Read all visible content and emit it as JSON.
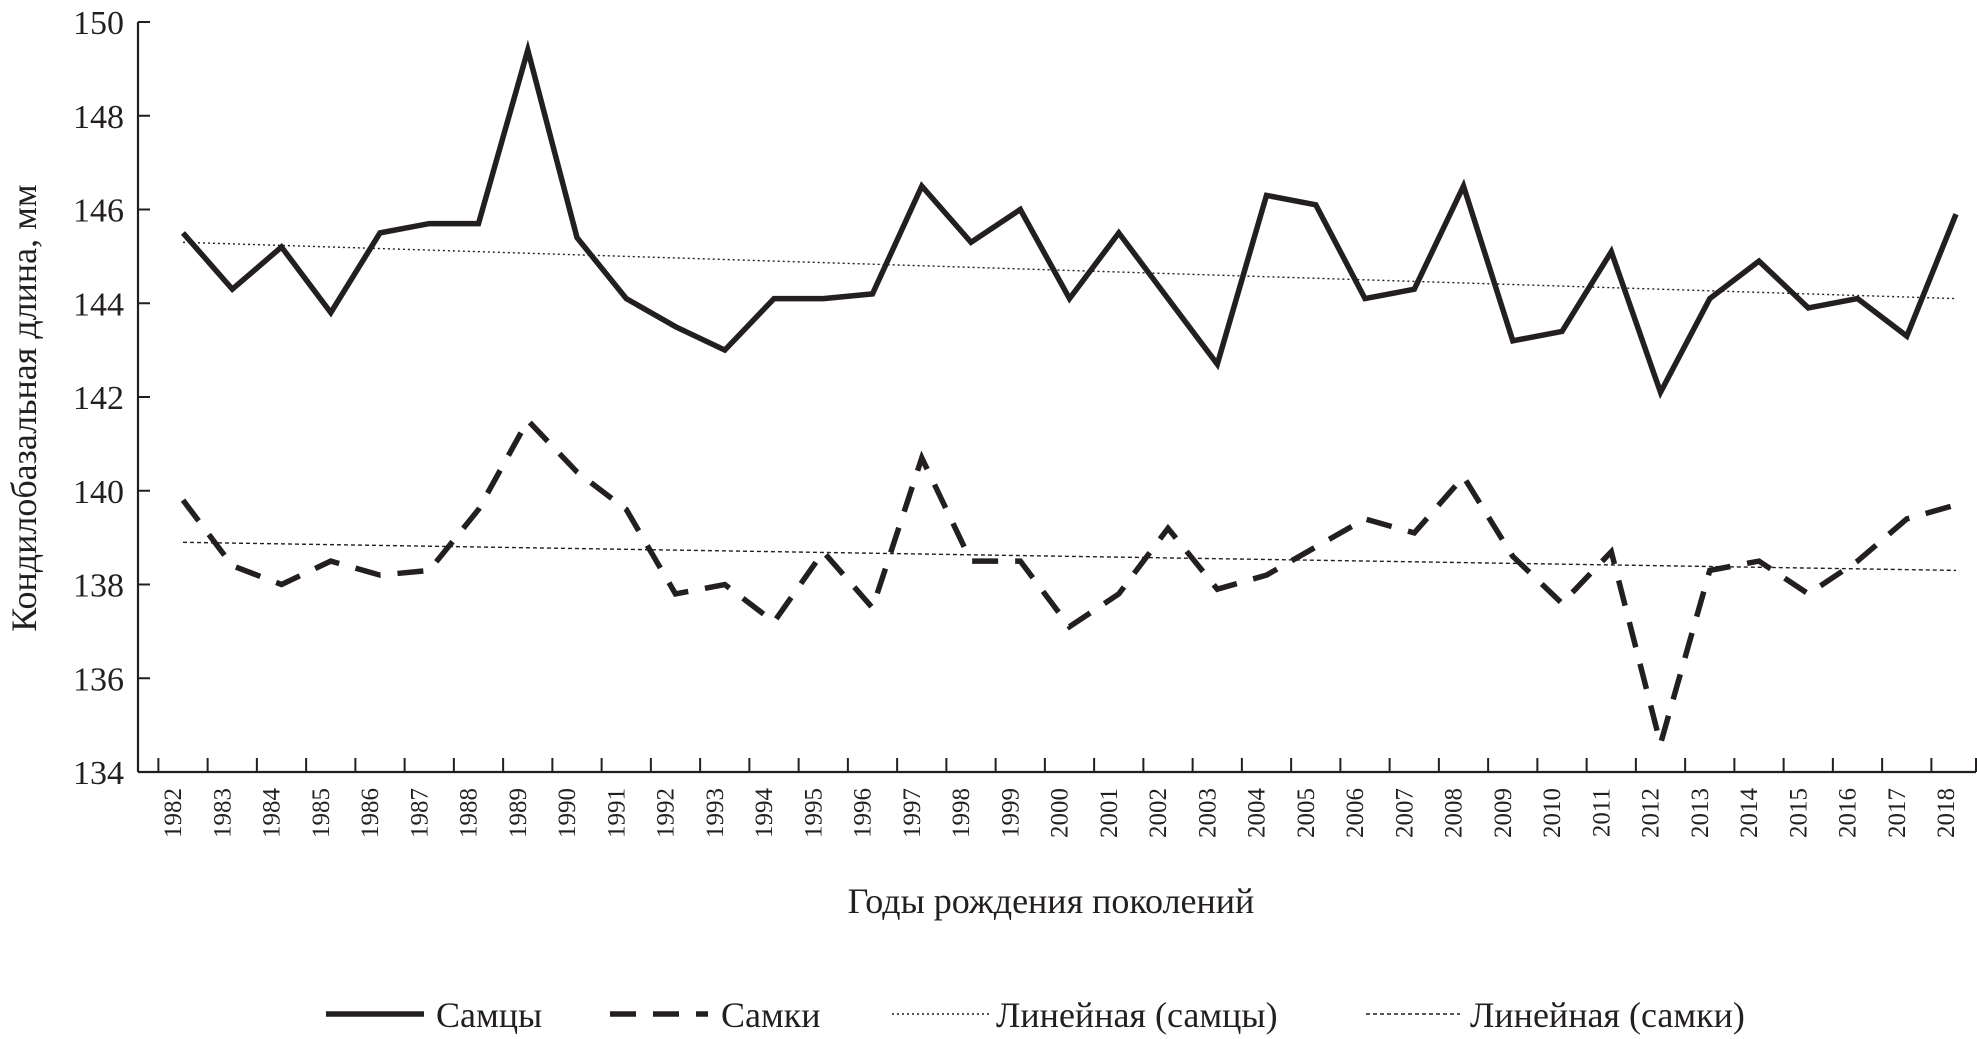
{
  "chart_data": {
    "type": "line",
    "xlabel": "Годы рождения поколений",
    "ylabel": "Кондилобазальная длина, мм",
    "ylim": [
      134,
      150
    ],
    "yticks": [
      "134",
      "136",
      "138",
      "140",
      "142",
      "144",
      "146",
      "148",
      "150"
    ],
    "categories": [
      "1982",
      "1983",
      "1984",
      "1985",
      "1986",
      "1987",
      "1988",
      "1989",
      "1990",
      "1991",
      "1992",
      "1993",
      "1994",
      "1995",
      "1996",
      "1997",
      "1998",
      "1999",
      "2000",
      "2001",
      "2002",
      "2003",
      "2004",
      "2005",
      "2006",
      "2007",
      "2008",
      "2009",
      "2010",
      "2011",
      "2012",
      "2013",
      "2014",
      "2015",
      "2016",
      "2017",
      "2018"
    ],
    "series": [
      {
        "name": "Самцы",
        "style": "solid-thick",
        "values": [
          145.5,
          144.3,
          145.2,
          143.8,
          145.5,
          145.7,
          145.7,
          149.4,
          145.4,
          144.1,
          143.5,
          143.0,
          144.1,
          144.1,
          144.2,
          146.5,
          145.3,
          146.0,
          144.1,
          145.5,
          144.1,
          142.7,
          146.3,
          146.1,
          144.1,
          144.3,
          146.5,
          143.2,
          143.4,
          145.1,
          142.1,
          144.1,
          144.9,
          143.9,
          144.1,
          143.3,
          145.9
        ]
      },
      {
        "name": "Самки",
        "style": "dashed-thick",
        "values": [
          139.8,
          138.4,
          138.0,
          138.5,
          138.2,
          138.3,
          139.6,
          141.5,
          140.4,
          139.6,
          137.8,
          138.0,
          137.2,
          138.7,
          137.5,
          140.7,
          138.5,
          138.5,
          137.1,
          137.8,
          139.2,
          137.9,
          138.2,
          138.8,
          139.4,
          139.1,
          140.3,
          138.6,
          137.6,
          138.7,
          134.6,
          138.3,
          138.5,
          137.8,
          138.5,
          139.4,
          139.7
        ]
      },
      {
        "name": "Линейная (самцы)",
        "style": "dotted-thin",
        "trend": [
          145.3,
          144.1
        ]
      },
      {
        "name": "Линейная (самки)",
        "style": "dashed-thin",
        "trend": [
          138.9,
          138.3
        ]
      }
    ],
    "grid": false,
    "legend_position": "bottom"
  }
}
